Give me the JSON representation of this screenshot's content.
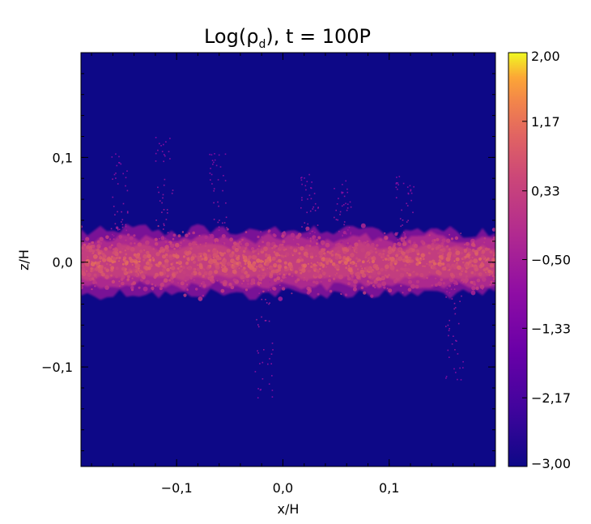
{
  "chart_data": {
    "type": "heatmap",
    "title": "Log(ρd), t = 100P",
    "title_parts": {
      "prefix": "Log(ρ",
      "subscript": "d",
      "suffix": "), t = 100P"
    },
    "xlabel": "x/H",
    "ylabel": "z/H",
    "xlim": [
      -0.19,
      0.2
    ],
    "ylim": [
      -0.195,
      0.2
    ],
    "x_ticks": [
      -0.1,
      0.0,
      0.1
    ],
    "x_tick_labels": [
      "−0,1",
      "0,0",
      "0,1"
    ],
    "y_ticks": [
      -0.1,
      0.0,
      0.1
    ],
    "y_tick_labels": [
      "−0,1",
      "0,0",
      "0,1"
    ],
    "grid": false,
    "colormap": "plasma",
    "background_color": "#0d0887",
    "colorbar": {
      "min": -3.0,
      "max": 2.0,
      "tick_values": [
        2.0,
        1.17,
        0.33,
        -0.5,
        -1.33,
        -2.17,
        -3.0
      ],
      "tick_labels": [
        "2,00",
        "1,17",
        "0,33",
        "−0,50",
        "−1,33",
        "−2,17",
        "−3,00"
      ]
    },
    "dust_layer": {
      "center_z": 0.0,
      "half_thickness_z": 0.02,
      "typical_log_density": 0.3
    }
  }
}
